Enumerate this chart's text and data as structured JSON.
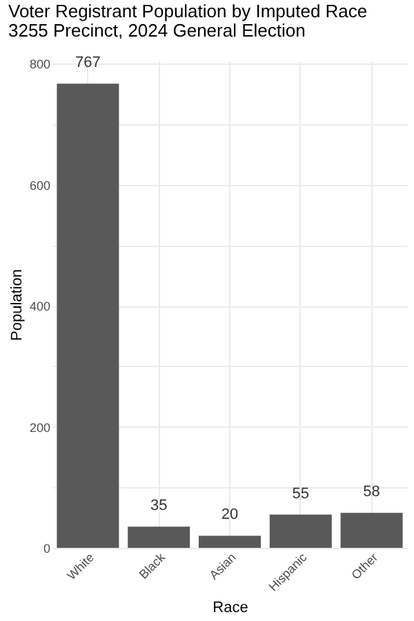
{
  "chart_data": {
    "type": "bar",
    "title": "Voter Registrant Population by Imputed Race",
    "subtitle": "3255 Precinct,  2024 General Election",
    "xlabel": "Race",
    "ylabel": "Population",
    "categories": [
      "White",
      "Black",
      "Asian",
      "Hispanic",
      "Other"
    ],
    "values": [
      767,
      35,
      20,
      55,
      58
    ],
    "color": "#595959",
    "data_labels": true,
    "ylim": [
      0,
      805
    ],
    "yticks": [
      0,
      {
        "value": 100,
        "label": null
      },
      200,
      {
        "value": 300,
        "label": null
      },
      400,
      {
        "value": 500,
        "label": null
      },
      600,
      {
        "value": 700,
        "label": null
      },
      800
    ],
    "grid": true
  }
}
